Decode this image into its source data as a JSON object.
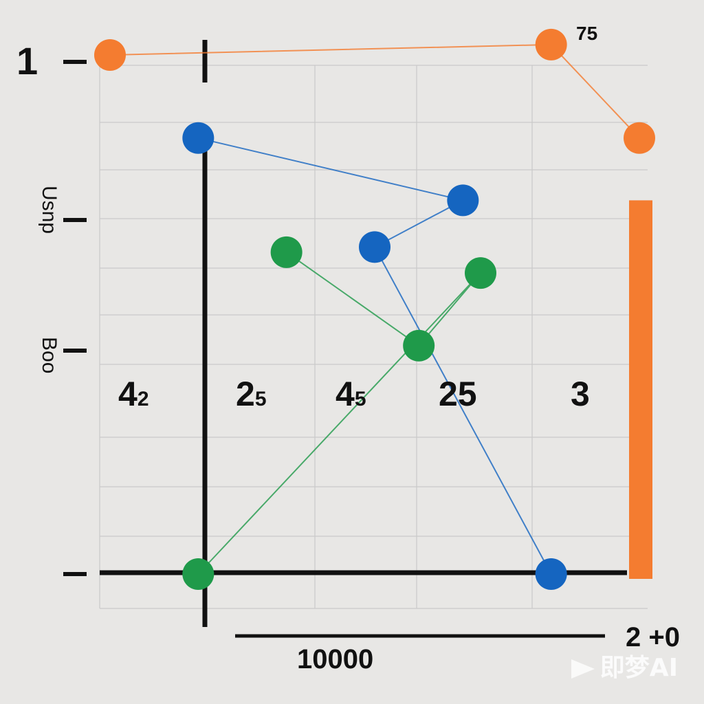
{
  "chart_data": {
    "type": "line",
    "y_tick_labels": [
      "1",
      "",
      "",
      ""
    ],
    "side_labels": [
      "Usnp",
      "Boo"
    ],
    "value_labels": [
      {
        "main": "4",
        "small": "2"
      },
      {
        "main": "2",
        "small": "5"
      },
      {
        "main": "4",
        "small": "5"
      },
      {
        "main": "25",
        "small": ""
      },
      {
        "main": "3",
        "small": ""
      }
    ],
    "corner_label": "75",
    "x_label": "10000",
    "right_label": "2 +0",
    "series": [
      {
        "color": "#f47c30",
        "points": [
          [
            0,
            1.0
          ],
          [
            5,
            1.02
          ],
          [
            6,
            0.84
          ]
        ]
      },
      {
        "color": "#1565c0",
        "points": [
          [
            1,
            0.84
          ],
          [
            4,
            0.72
          ],
          [
            3,
            0.63
          ],
          [
            5,
            0.0
          ]
        ]
      },
      {
        "color": "#1f9a4a",
        "points": [
          [
            2,
            0.62
          ],
          [
            3.5,
            0.44
          ],
          [
            4.2,
            0.58
          ],
          [
            1,
            0.0
          ]
        ]
      }
    ],
    "bar": {
      "color": "#f47c30",
      "value": 0.72
    },
    "grid": true
  },
  "watermark": "即梦AI"
}
